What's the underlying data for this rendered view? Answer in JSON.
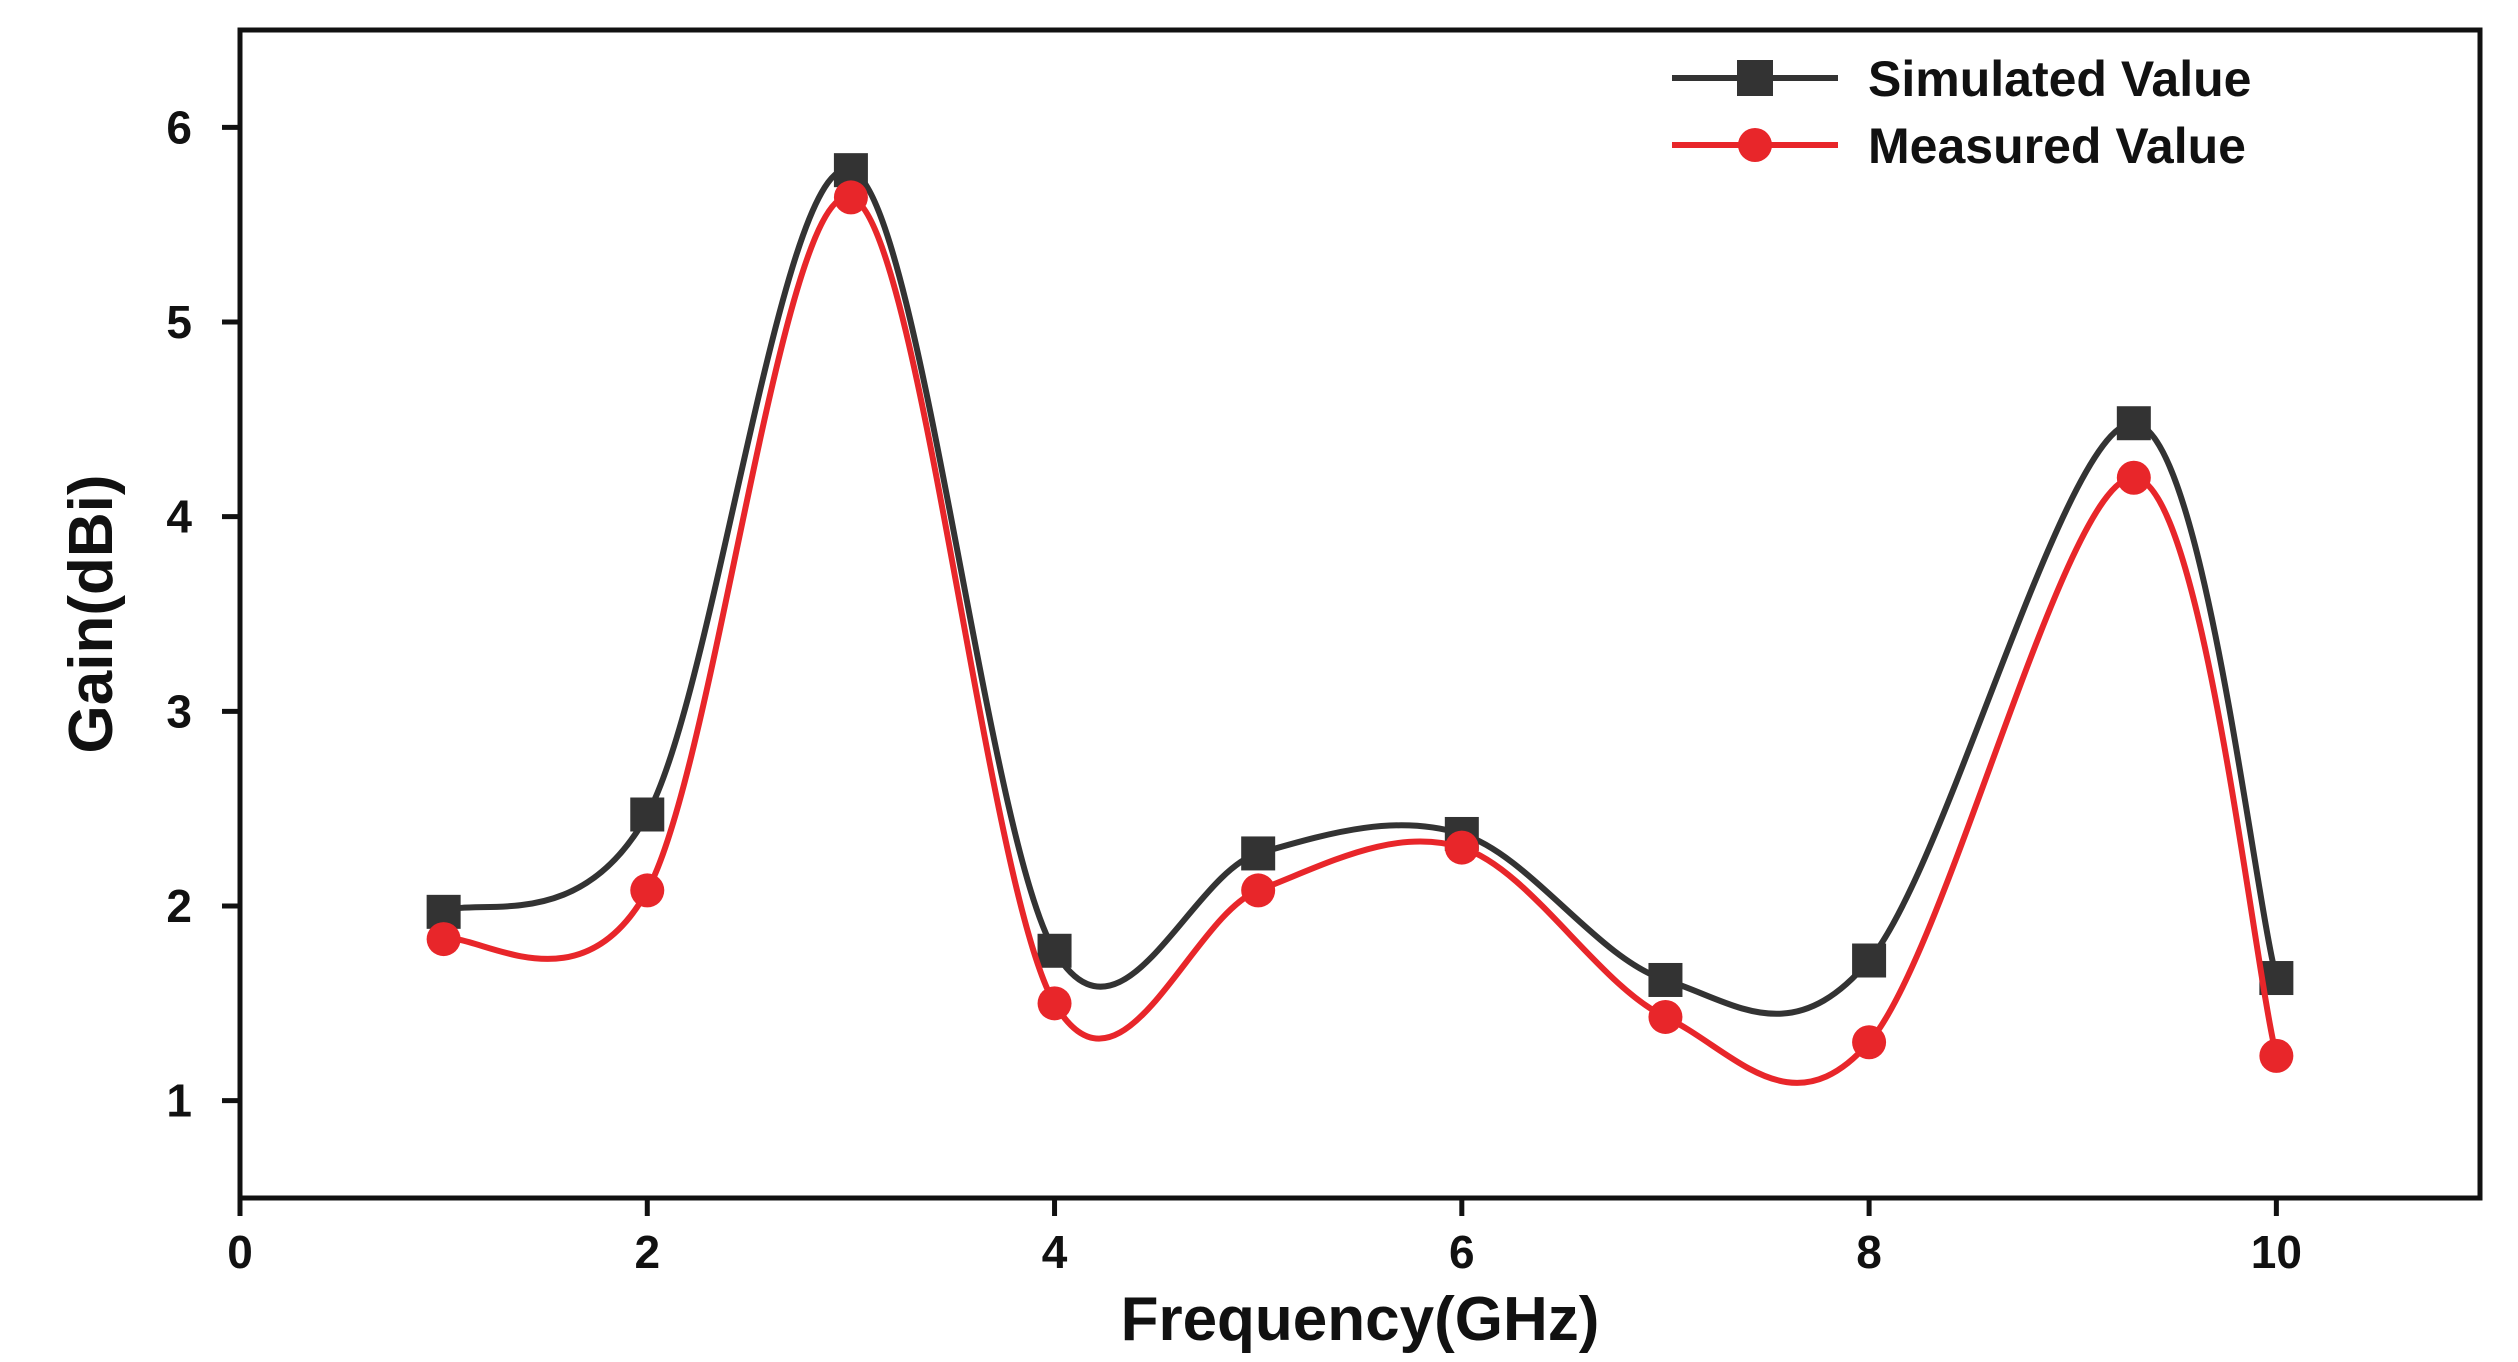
{
  "chart_data": {
    "type": "line",
    "title": "",
    "xlabel": "Frequency(GHz)",
    "ylabel": "Gain(dBi)",
    "xlim": [
      0,
      11
    ],
    "ylim": [
      0.5,
      6.5
    ],
    "xticks": [
      0,
      2,
      4,
      6,
      8,
      10
    ],
    "yticks": [
      1,
      2,
      3,
      4,
      5,
      6
    ],
    "xtick_labels": [
      "0",
      "2",
      "4",
      "6",
      "8",
      "10"
    ],
    "ytick_labels": [
      "1",
      "2",
      "3",
      "4",
      "5",
      "6"
    ],
    "grid": false,
    "smooth": true,
    "legend": {
      "position": "top-right"
    },
    "series": [
      {
        "name": "Simulated Value",
        "color": "#333333",
        "marker": "square",
        "x": [
          1,
          2,
          3,
          4,
          5,
          6,
          7,
          8,
          9.3,
          10
        ],
        "y": [
          1.97,
          2.47,
          5.78,
          1.77,
          2.27,
          2.37,
          1.62,
          1.72,
          4.48,
          1.63
        ]
      },
      {
        "name": "Measured Value",
        "color": "#e8262a",
        "marker": "circle",
        "x": [
          1,
          2,
          3,
          4,
          5,
          6,
          7,
          8,
          9.3,
          10
        ],
        "y": [
          1.83,
          2.08,
          5.64,
          1.5,
          2.08,
          2.3,
          1.43,
          1.3,
          4.2,
          1.23
        ]
      }
    ]
  }
}
